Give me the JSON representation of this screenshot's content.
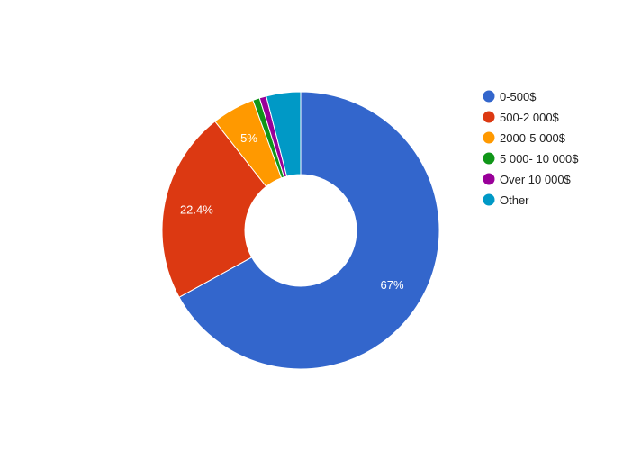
{
  "chart_data": {
    "type": "pie",
    "donut": true,
    "title": "",
    "legend_position": "right",
    "categories": [
      "0-500$",
      "500-2 000$",
      "2000-5 000$",
      "5 000- 10 000$",
      "Over 10 000$",
      "Other"
    ],
    "values": [
      67,
      22.4,
      5,
      0.8,
      0.8,
      4
    ],
    "data_labels": [
      "67%",
      "22.4%",
      "5%",
      "",
      "",
      ""
    ],
    "colors": [
      "#3366cc",
      "#dc3912",
      "#ff9900",
      "#109618",
      "#990099",
      "#0099c6"
    ]
  }
}
